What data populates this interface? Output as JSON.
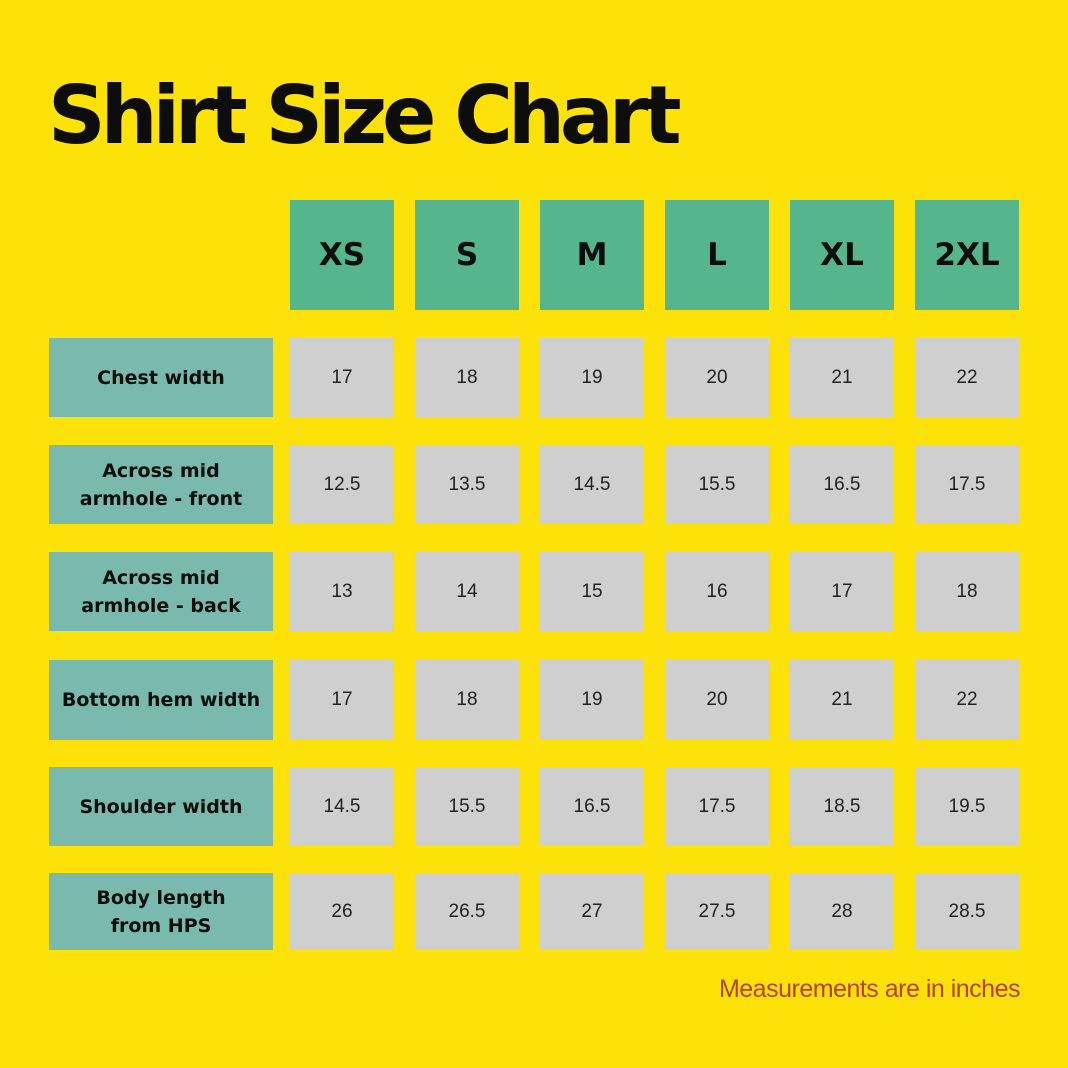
{
  "title": "Shirt Size Chart",
  "sizes": [
    "XS",
    "S",
    "M",
    "L",
    "XL",
    "2XL"
  ],
  "rows": [
    {
      "label": "Chest width",
      "values": [
        "17",
        "18",
        "19",
        "20",
        "21",
        "22"
      ]
    },
    {
      "label": "Across mid\narmhole - front",
      "values": [
        "12.5",
        "13.5",
        "14.5",
        "15.5",
        "16.5",
        "17.5"
      ]
    },
    {
      "label": "Across mid\narmhole - back",
      "values": [
        "13",
        "14",
        "15",
        "16",
        "17",
        "18"
      ]
    },
    {
      "label": "Bottom hem width",
      "values": [
        "17",
        "18",
        "19",
        "20",
        "21",
        "22"
      ]
    },
    {
      "label": "Shoulder width",
      "values": [
        "14.5",
        "15.5",
        "16.5",
        "17.5",
        "18.5",
        "19.5"
      ]
    },
    {
      "label": "Body length\nfrom HPS",
      "values": [
        "26",
        "26.5",
        "27",
        "27.5",
        "28",
        "28.5"
      ]
    }
  ],
  "note": "Measurements are in inches",
  "colors": {
    "background": "#fce209",
    "size_header": "#55b68e",
    "row_label": "#7ab9ad",
    "cell": "#cfcfcf",
    "note_text": "#b8401f"
  }
}
